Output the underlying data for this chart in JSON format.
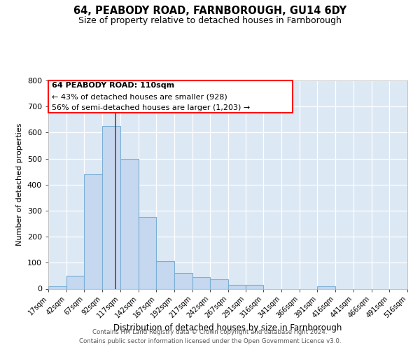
{
  "title1": "64, PEABODY ROAD, FARNBOROUGH, GU14 6DY",
  "title2": "Size of property relative to detached houses in Farnborough",
  "xlabel": "Distribution of detached houses by size in Farnborough",
  "ylabel": "Number of detached properties",
  "annotation_line1": "64 PEABODY ROAD: 110sqm",
  "annotation_line2": "← 43% of detached houses are smaller (928)",
  "annotation_line3": "56% of semi-detached houses are larger (1,203) →",
  "footer1": "Contains HM Land Registry data © Crown copyright and database right 2024.",
  "footer2": "Contains public sector information licensed under the Open Government Licence v3.0.",
  "bar_color": "#c5d8ef",
  "bar_edge_color": "#7aafd4",
  "background_color": "#dce9f5",
  "grid_color": "#ffffff",
  "red_line_x": 110,
  "bin_edges": [
    17,
    42,
    67,
    92,
    117,
    142,
    167,
    192,
    217,
    242,
    267,
    291,
    316,
    341,
    366,
    391,
    416,
    441,
    466,
    491,
    516
  ],
  "bin_counts": [
    10,
    50,
    440,
    625,
    500,
    275,
    105,
    60,
    45,
    35,
    15,
    15,
    0,
    0,
    0,
    10,
    0,
    0,
    0,
    0
  ],
  "ylim": [
    0,
    800
  ],
  "yticks": [
    0,
    100,
    200,
    300,
    400,
    500,
    600,
    700,
    800
  ]
}
